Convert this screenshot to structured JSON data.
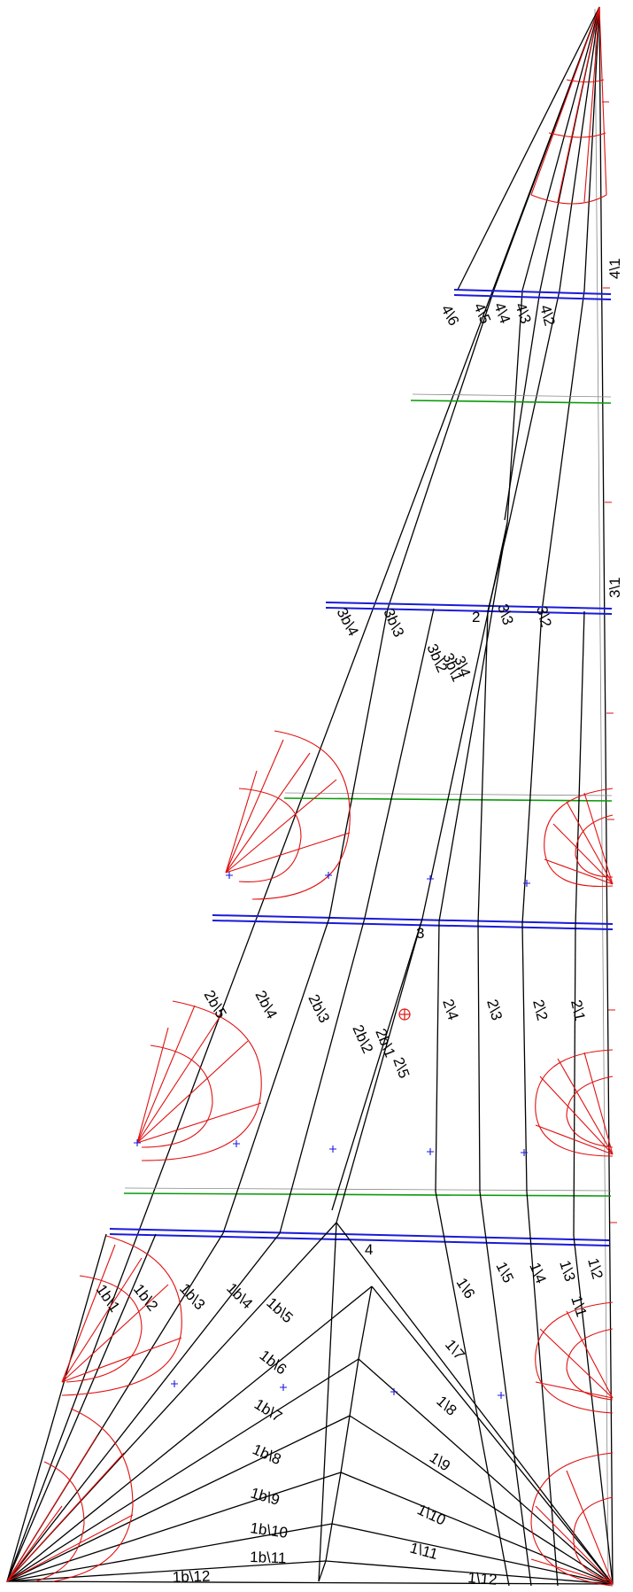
{
  "labels": {
    "luff_41": "4\\1",
    "luff_31": "3\\1",
    "p46": "4\\6",
    "p45": "4\\5",
    "p44": "4\\4",
    "p43": "4\\3",
    "p42": "4\\2",
    "p3b4": "3b\\4",
    "p3b3": "3b\\3",
    "n2": "2",
    "p33": "3\\3",
    "p32": "3\\2",
    "p3b2": "3b\\2",
    "p3b1": "3b\\1",
    "p34": "3\\4",
    "n3": "3",
    "p2b5": "2b\\5",
    "p2b4": "2b\\4",
    "p2b3": "2b\\3",
    "p2b2": "2b\\2",
    "p2b1": "2b\\1",
    "p25": "2\\5",
    "p24": "2\\4",
    "p23": "2\\3",
    "p22": "2\\2",
    "p21": "2\\1",
    "n4": "4",
    "p1b1": "1b\\1",
    "p1b2": "1b\\2",
    "p1b3": "1b\\3",
    "p1b4": "1b\\4",
    "p1b5": "1b\\5",
    "p1b6": "1b\\6",
    "p1b7": "1b\\7",
    "p1b8": "1b\\8",
    "p1b9": "1b\\9",
    "p1b10": "1b\\10",
    "p1b11": "1b\\11",
    "p1b12": "1b\\12",
    "p16": "1\\6",
    "p15": "1\\5",
    "p14": "1\\4",
    "p13": "1\\3",
    "p12": "1\\2",
    "p11": "1\\1",
    "p17": "1\\7",
    "p18": "1\\8",
    "p19": "1\\9",
    "p110": "1\\10",
    "p111": "1\\11",
    "p112": "1\\12"
  },
  "colors": {
    "seam": "#000000",
    "panel_division": "#1a1ad9",
    "reef_line": "#0a9a0a",
    "reinforcement": "#e01010",
    "center_of_effort": "#e01010"
  }
}
